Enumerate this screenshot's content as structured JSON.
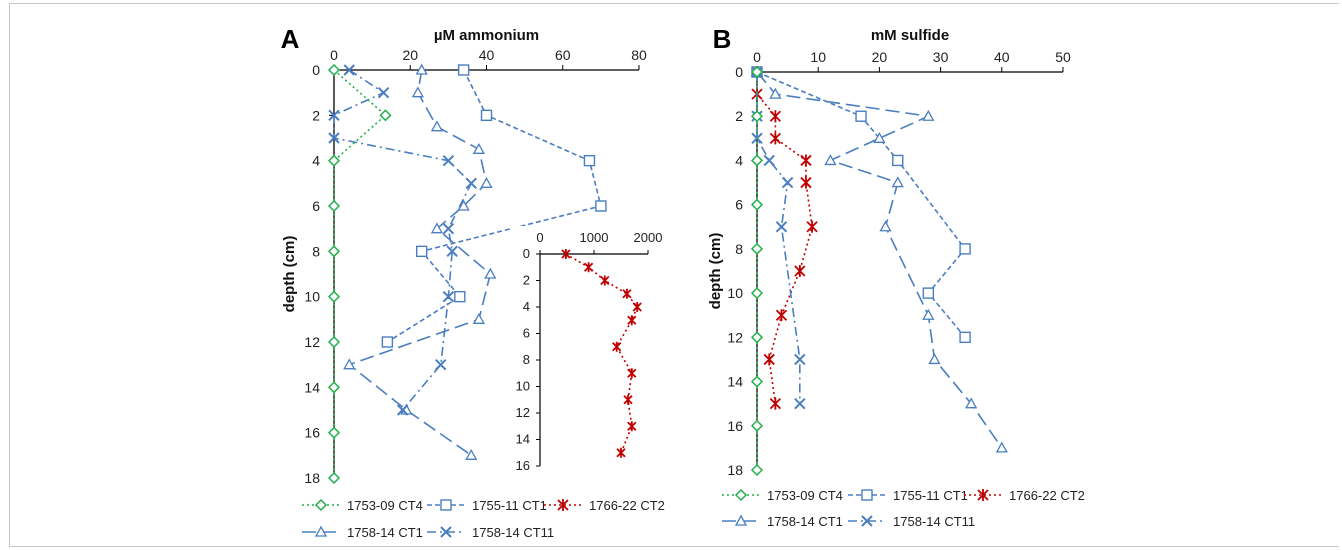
{
  "chart_data": [
    {
      "panel": "A",
      "type": "line",
      "xlabel": "µM ammonium",
      "ylabel": "depth (cm)",
      "xlim": [
        0,
        80
      ],
      "ylim": [
        18,
        0
      ],
      "x_axis_position": "top",
      "x_ticks": [
        0,
        20,
        40,
        60,
        80
      ],
      "y_ticks": [
        0,
        2,
        4,
        6,
        8,
        10,
        12,
        14,
        16,
        18
      ],
      "series": [
        {
          "name": "1753-09 CT4",
          "color": "#22b14c",
          "marker": "diamond",
          "dash": "dotted",
          "points": [
            [
              0,
              0
            ],
            [
              13.5,
              2
            ],
            [
              0,
              4
            ],
            [
              0,
              6
            ],
            [
              0,
              8
            ],
            [
              0,
              10
            ],
            [
              0,
              12
            ],
            [
              0,
              14
            ],
            [
              0,
              16
            ],
            [
              0,
              18
            ]
          ]
        },
        {
          "name": "1755-11 CT1",
          "color": "#4a7ec0",
          "marker": "square",
          "dash": "short-dash",
          "points": [
            [
              34,
              0
            ],
            [
              40,
              2
            ],
            [
              67,
              4
            ],
            [
              70,
              6
            ],
            [
              23,
              8
            ],
            [
              33,
              10
            ],
            [
              14,
              12
            ]
          ]
        },
        {
          "name": "1758-14 CT1",
          "color": "#4a7ec0",
          "marker": "triangle",
          "dash": "long-dash",
          "points": [
            [
              23,
              0
            ],
            [
              22,
              1
            ],
            [
              27,
              2.5
            ],
            [
              38,
              3.5
            ],
            [
              40,
              5
            ],
            [
              34,
              6
            ],
            [
              27,
              7
            ],
            [
              41,
              9
            ],
            [
              38,
              11
            ],
            [
              4,
              13
            ],
            [
              19,
              15
            ],
            [
              36,
              17
            ]
          ]
        },
        {
          "name": "1758-14 CT11",
          "color": "#4a7ec0",
          "marker": "x",
          "dash": "dash-dot",
          "points": [
            [
              4,
              0
            ],
            [
              13,
              1
            ],
            [
              0,
              2
            ],
            [
              0,
              3
            ],
            [
              30,
              4
            ],
            [
              36,
              5
            ],
            [
              30,
              7
            ],
            [
              31,
              8
            ],
            [
              30,
              10
            ],
            [
              28,
              13
            ],
            [
              18,
              15
            ]
          ]
        }
      ],
      "inset": {
        "xlim": [
          0,
          2000
        ],
        "x_ticks": [
          0,
          1000,
          2000
        ],
        "ylim": [
          16,
          0
        ],
        "y_ticks": [
          0,
          2,
          4,
          6,
          8,
          10,
          12,
          14,
          16
        ],
        "series": [
          {
            "name": "1766-22 CT2",
            "color": "#c00000",
            "marker": "star",
            "dash": "dotted",
            "points": [
              [
                480,
                0
              ],
              [
                900,
                1
              ],
              [
                1200,
                2
              ],
              [
                1610,
                3
              ],
              [
                1800,
                4
              ],
              [
                1700,
                5
              ],
              [
                1420,
                7
              ],
              [
                1700,
                9
              ],
              [
                1630,
                11
              ],
              [
                1700,
                13
              ],
              [
                1500,
                15
              ]
            ]
          }
        ]
      }
    },
    {
      "panel": "B",
      "type": "line",
      "xlabel": "mM sulfide",
      "ylabel": "depth (cm)",
      "xlim": [
        0,
        50
      ],
      "ylim": [
        18,
        0
      ],
      "x_axis_position": "top",
      "x_ticks": [
        0,
        10,
        20,
        30,
        40,
        50
      ],
      "y_ticks": [
        0,
        2,
        4,
        6,
        8,
        10,
        12,
        14,
        16,
        18
      ],
      "series": [
        {
          "name": "1753-09 CT4",
          "color": "#22b14c",
          "marker": "diamond",
          "dash": "dotted",
          "points": [
            [
              0,
              0
            ],
            [
              0,
              2
            ],
            [
              0,
              4
            ],
            [
              0,
              6
            ],
            [
              0,
              8
            ],
            [
              0,
              10
            ],
            [
              0,
              12
            ],
            [
              0,
              14
            ],
            [
              0,
              16
            ],
            [
              0,
              18
            ]
          ]
        },
        {
          "name": "1755-11 CT1",
          "color": "#4a7ec0",
          "marker": "square",
          "dash": "short-dash",
          "points": [
            [
              0,
              0
            ],
            [
              17,
              2
            ],
            [
              23,
              4
            ],
            [
              34,
              8
            ],
            [
              28,
              10
            ],
            [
              34,
              12
            ]
          ]
        },
        {
          "name": "1766-22 CT2",
          "color": "#c00000",
          "marker": "star",
          "dash": "dotted",
          "points": [
            [
              0,
              0
            ],
            [
              0,
              1
            ],
            [
              3,
              2
            ],
            [
              3,
              3
            ],
            [
              8,
              4
            ],
            [
              8,
              5
            ],
            [
              9,
              7
            ],
            [
              7,
              9
            ],
            [
              4,
              11
            ],
            [
              2,
              13
            ],
            [
              3,
              15
            ]
          ]
        },
        {
          "name": "1758-14 CT1",
          "color": "#4a7ec0",
          "marker": "triangle",
          "dash": "long-dash",
          "points": [
            [
              0,
              0
            ],
            [
              3,
              1
            ],
            [
              28,
              2
            ],
            [
              20,
              3
            ],
            [
              12,
              4
            ],
            [
              23,
              5
            ],
            [
              21,
              7
            ],
            [
              28,
              11
            ],
            [
              29,
              13
            ],
            [
              35,
              15
            ],
            [
              40,
              17
            ]
          ]
        },
        {
          "name": "1758-14 CT11",
          "color": "#4a7ec0",
          "marker": "x",
          "dash": "dash-dot",
          "points": [
            [
              0,
              0
            ],
            [
              0,
              2
            ],
            [
              0,
              3
            ],
            [
              2,
              4
            ],
            [
              5,
              5
            ],
            [
              4,
              7
            ],
            [
              7,
              13
            ],
            [
              7,
              15
            ]
          ]
        }
      ]
    }
  ],
  "legend_A": [
    {
      "name": "1753-09 CT4",
      "color": "#22b14c",
      "marker": "diamond",
      "dash": "dotted"
    },
    {
      "name": "1755-11 CT1",
      "color": "#4a7ec0",
      "marker": "square",
      "dash": "short-dash"
    },
    {
      "name": "1766-22 CT2",
      "color": "#c00000",
      "marker": "star",
      "dash": "dotted"
    },
    {
      "name": "1758-14 CT1",
      "color": "#4a7ec0",
      "marker": "triangle",
      "dash": "long-dash"
    },
    {
      "name": "1758-14 CT11",
      "color": "#4a7ec0",
      "marker": "x",
      "dash": "dash-dot"
    }
  ],
  "legend_B": [
    {
      "name": "1753-09 CT4",
      "color": "#22b14c",
      "marker": "diamond",
      "dash": "dotted"
    },
    {
      "name": "1755-11 CT1",
      "color": "#4a7ec0",
      "marker": "square",
      "dash": "short-dash"
    },
    {
      "name": "1766-22 CT2",
      "color": "#c00000",
      "marker": "star",
      "dash": "dotted"
    },
    {
      "name": "1758-14 CT1",
      "color": "#4a7ec0",
      "marker": "triangle",
      "dash": "long-dash"
    },
    {
      "name": "1758-14 CT11",
      "color": "#4a7ec0",
      "marker": "x",
      "dash": "dash-dot"
    }
  ],
  "legend_placement": "bottom"
}
